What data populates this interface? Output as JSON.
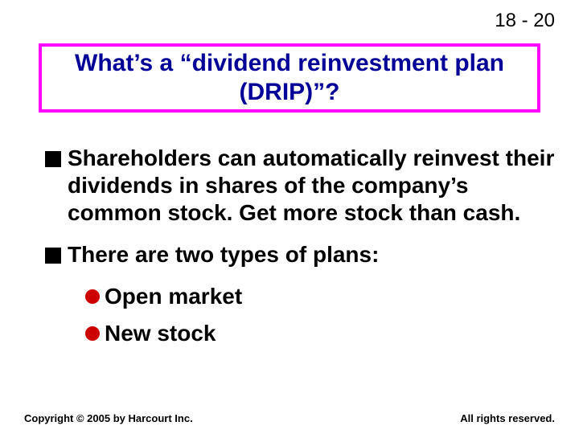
{
  "page_number": "18 - 20",
  "title": "What’s a “dividend reinvestment plan (DRIP)”?",
  "bullets": [
    {
      "text": "Shareholders can automatically reinvest their dividends in shares of the company’s common stock.  Get more stock than cash."
    },
    {
      "text": "There are two types of plans:",
      "subs": [
        "Open market",
        "New stock"
      ]
    }
  ],
  "footer": {
    "left": "Copyright © 2005 by Harcourt Inc.",
    "right": "All rights reserved."
  },
  "styling": {
    "title_border_color": "#ff00ff",
    "title_text_color": "#000099",
    "square_bullet_color": "#000000",
    "circle_bullet_color": "#cc0000",
    "body_text_color": "#000000",
    "background_color": "#ffffff",
    "title_fontsize": 30,
    "body_fontsize": 28,
    "footer_fontsize": 13
  }
}
